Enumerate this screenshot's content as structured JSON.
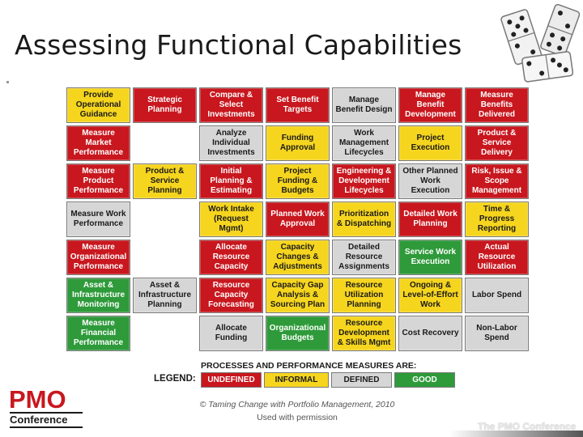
{
  "title": "Assessing Functional Capabilities",
  "colors": {
    "undefined": "#c8171e",
    "informal": "#f6d51f",
    "defined": "#d6d6d6",
    "good": "#2e9a3a"
  },
  "grid": [
    [
      {
        "label": "Provide Operational Guidance",
        "status": "yellow"
      },
      {
        "label": "Strategic Planning",
        "status": "red"
      },
      {
        "label": "Compare & Select Investments",
        "status": "red"
      },
      {
        "label": "Set Benefit Targets",
        "status": "red"
      },
      {
        "label": "Manage Benefit Design",
        "status": "gray"
      },
      {
        "label": "Manage Benefit Development",
        "status": "red"
      },
      {
        "label": "Measure Benefits Delivered",
        "status": "red"
      }
    ],
    [
      {
        "label": "Measure Market Performance",
        "status": "red"
      },
      {
        "label": "",
        "status": "blank"
      },
      {
        "label": "Analyze Individual Investments",
        "status": "gray"
      },
      {
        "label": "Funding Approval",
        "status": "yellow"
      },
      {
        "label": "Work Management Lifecycles",
        "status": "gray"
      },
      {
        "label": "Project Execution",
        "status": "yellow"
      },
      {
        "label": "Product & Service Delivery",
        "status": "red"
      }
    ],
    [
      {
        "label": "Measure Product Performance",
        "status": "red"
      },
      {
        "label": "Product & Service Planning",
        "status": "yellow"
      },
      {
        "label": "Initial Planning & Estimating",
        "status": "red"
      },
      {
        "label": "Project Funding & Budgets",
        "status": "yellow"
      },
      {
        "label": "Engineering & Development Lifecycles",
        "status": "red"
      },
      {
        "label": "Other Planned Work Execution",
        "status": "gray"
      },
      {
        "label": "Risk, Issue & Scope Management",
        "status": "red"
      }
    ],
    [
      {
        "label": "Measure Work Performance",
        "status": "gray"
      },
      {
        "label": "",
        "status": "blank"
      },
      {
        "label": "Work Intake (Request Mgmt)",
        "status": "yellow"
      },
      {
        "label": "Planned Work Approval",
        "status": "red"
      },
      {
        "label": "Prioritization & Dispatching",
        "status": "yellow"
      },
      {
        "label": "Detailed Work Planning",
        "status": "red"
      },
      {
        "label": "Time & Progress Reporting",
        "status": "yellow"
      }
    ],
    [
      {
        "label": "Measure Organizational Performance",
        "status": "red"
      },
      {
        "label": "",
        "status": "blank"
      },
      {
        "label": "Allocate Resource Capacity",
        "status": "red"
      },
      {
        "label": "Capacity Changes & Adjustments",
        "status": "yellow"
      },
      {
        "label": "Detailed Resource Assignments",
        "status": "gray"
      },
      {
        "label": "Service Work Execution",
        "status": "green"
      },
      {
        "label": "Actual Resource Utilization",
        "status": "red"
      }
    ],
    [
      {
        "label": "Asset & Infrastructure Monitoring",
        "status": "green"
      },
      {
        "label": "Asset & Infrastructure Planning",
        "status": "gray"
      },
      {
        "label": "Resource Capacity Forecasting",
        "status": "red"
      },
      {
        "label": "Capacity Gap Analysis & Sourcing Plan",
        "status": "yellow"
      },
      {
        "label": "Resource Utilization Planning",
        "status": "yellow"
      },
      {
        "label": "Ongoing & Level-of-Effort Work",
        "status": "yellow"
      },
      {
        "label": "Labor Spend",
        "status": "gray"
      }
    ],
    [
      {
        "label": "Measure Financial Performance",
        "status": "green"
      },
      {
        "label": "",
        "status": "blank"
      },
      {
        "label": "Allocate Funding",
        "status": "gray"
      },
      {
        "label": "Organizational Budgets",
        "status": "green"
      },
      {
        "label": "Resource Development & Skills Mgmt",
        "status": "yellow"
      },
      {
        "label": "Cost Recovery",
        "status": "gray"
      },
      {
        "label": "Non-Labor Spend",
        "status": "gray"
      }
    ]
  ],
  "legend": {
    "heading": "PROCESSES AND PERFORMANCE MEASURES ARE:",
    "label": "LEGEND:",
    "items": [
      {
        "label": "UNDEFINED",
        "status": "red"
      },
      {
        "label": "INFORMAL",
        "status": "yellow"
      },
      {
        "label": "DEFINED",
        "status": "gray"
      },
      {
        "label": "GOOD",
        "status": "green"
      }
    ]
  },
  "footer": {
    "credit_line1": "© Taming Change with Portfolio Management, 2010",
    "credit_line2": "Used with permission",
    "logo_main": "PMO",
    "logo_sub": "Conference",
    "brand": "The PMO Conference"
  }
}
